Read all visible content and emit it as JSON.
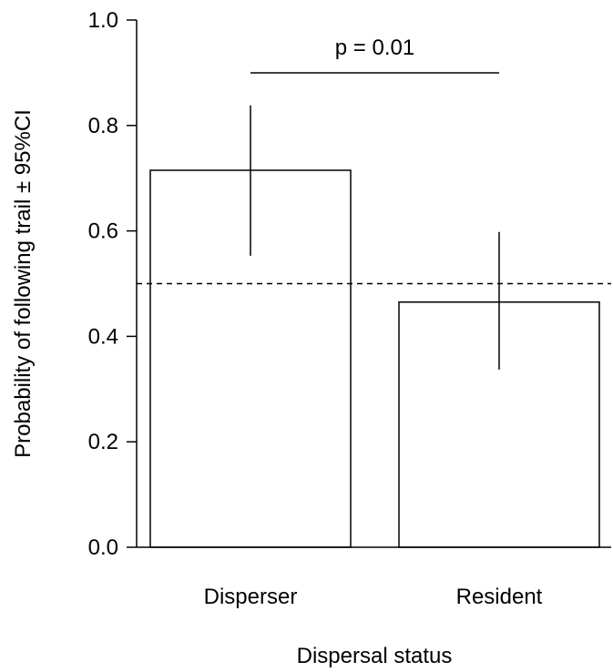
{
  "chart_data": {
    "type": "bar",
    "categories": [
      "Disperser",
      "Resident"
    ],
    "values": [
      0.715,
      0.465
    ],
    "ci_lower": [
      0.553,
      0.337
    ],
    "ci_upper": [
      0.838,
      0.598
    ],
    "xlabel": "Dispersal status",
    "ylabel": "Probability of following trail ± 95%CI",
    "ylim": [
      0,
      1
    ],
    "yticks": [
      "0.0",
      "0.2",
      "0.4",
      "0.6",
      "0.8",
      "1.0"
    ],
    "reference_line": 0.5,
    "annotation": "p = 0.01",
    "grid": false,
    "bar_fill": "#ffffff",
    "stroke_color": "#000000"
  }
}
